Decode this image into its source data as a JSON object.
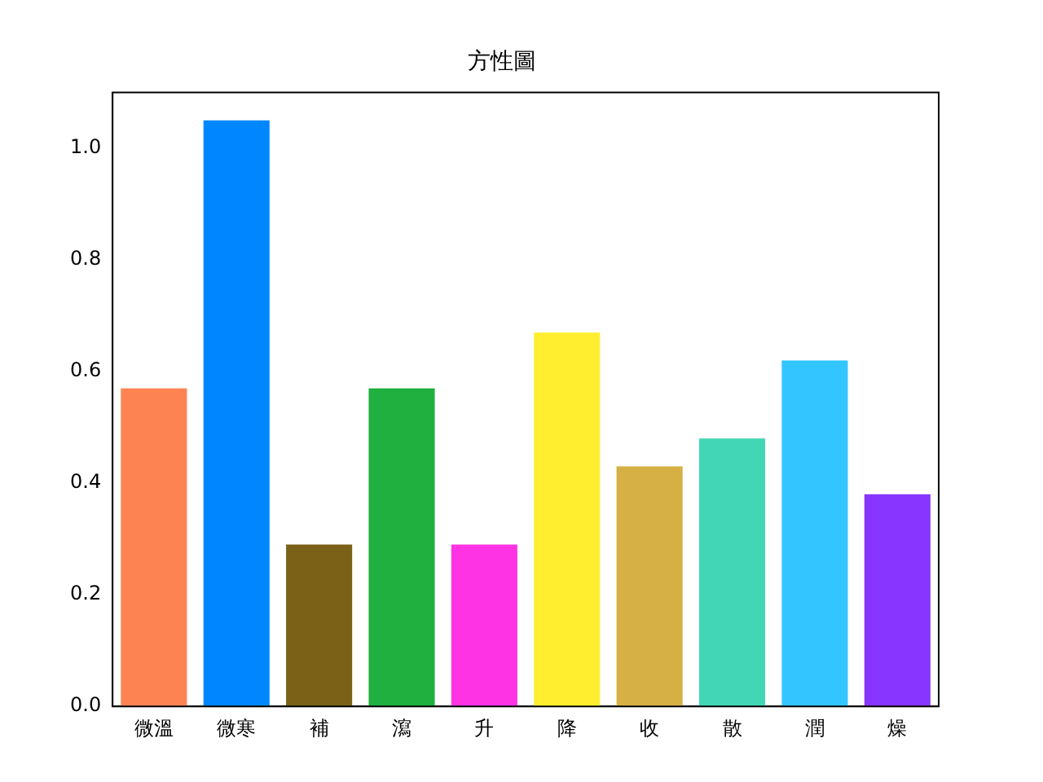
{
  "chart_data": {
    "type": "bar",
    "title": "方性圖",
    "categories": [
      "微溫",
      "微寒",
      "補",
      "瀉",
      "升",
      "降",
      "收",
      "散",
      "潤",
      "燥"
    ],
    "values": [
      0.57,
      1.05,
      0.29,
      0.57,
      0.29,
      0.67,
      0.43,
      0.48,
      0.62,
      0.38
    ],
    "colors": [
      "#fd8452",
      "#0087ff",
      "#7b6117",
      "#20b03f",
      "#fe34e4",
      "#ffee2f",
      "#d6b044",
      "#43d6b6",
      "#33c5ff",
      "#8836ff"
    ],
    "ylim": [
      0,
      1.1
    ],
    "yticks": [
      {
        "value": 0,
        "label": "0.0"
      },
      0.2,
      0.4,
      0.6,
      0.8,
      {
        "value": 1,
        "label": "1.0"
      }
    ],
    "grid": false,
    "legend": false
  }
}
